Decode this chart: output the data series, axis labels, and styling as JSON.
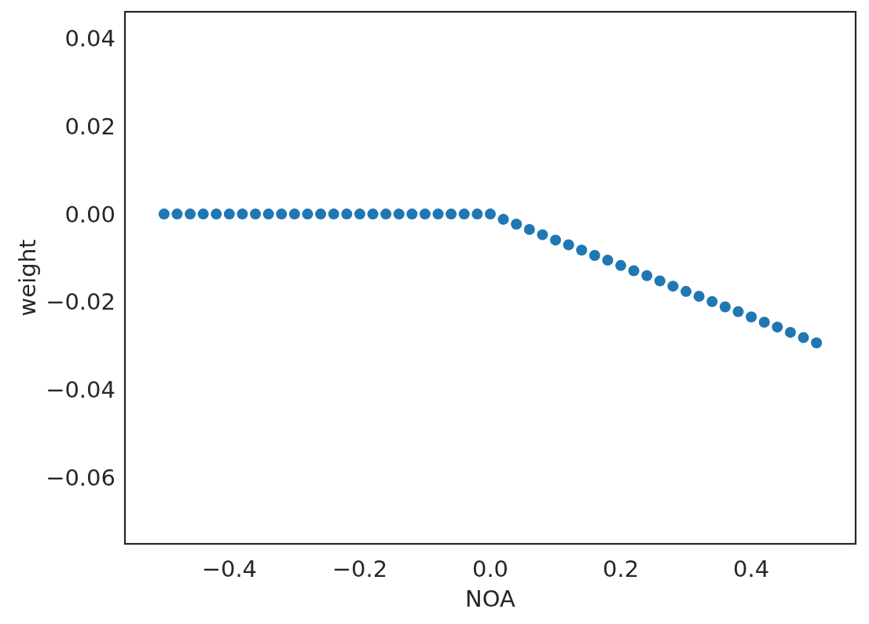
{
  "chart_data": {
    "type": "scatter",
    "xlabel": "NOA",
    "ylabel": "weight",
    "x": [
      -0.5,
      -0.48,
      -0.46,
      -0.44,
      -0.42,
      -0.4,
      -0.38,
      -0.36,
      -0.34,
      -0.32,
      -0.3,
      -0.28,
      -0.26,
      -0.24,
      -0.22,
      -0.2,
      -0.18,
      -0.16,
      -0.14,
      -0.12,
      -0.1,
      -0.08,
      -0.06,
      -0.04,
      -0.02,
      0,
      0.02,
      0.04,
      0.06,
      0.08,
      0.1,
      0.12,
      0.14,
      0.16,
      0.18,
      0.2,
      0.22,
      0.24,
      0.26,
      0.28,
      0.3,
      0.32,
      0.34,
      0.36,
      0.38,
      0.4,
      0.42,
      0.44,
      0.46,
      0.48,
      0.5
    ],
    "series": [
      {
        "color": "#1f77b4",
        "values": [
          0,
          0,
          0,
          0,
          0,
          0,
          0,
          0,
          0,
          0,
          0,
          0,
          0,
          0,
          0,
          0,
          0,
          0,
          0,
          0,
          0,
          0,
          0,
          0,
          0,
          0,
          -0.0012,
          -0.0023,
          -0.0035,
          -0.0047,
          -0.0059,
          -0.007,
          -0.0082,
          -0.0094,
          -0.0105,
          -0.0117,
          -0.0129,
          -0.014,
          -0.0152,
          -0.0164,
          -0.0176,
          -0.0187,
          -0.0199,
          -0.0211,
          -0.0222,
          -0.0234,
          -0.0246,
          -0.0257,
          -0.0269,
          -0.0281,
          -0.0293
        ]
      }
    ],
    "marker": "circle",
    "grid": false,
    "xlim": [
      -0.56,
      0.56
    ],
    "ylim": [
      -0.075,
      0.046
    ],
    "xticks": [
      {
        "value": -0.4,
        "label": "−0.4"
      },
      {
        "value": -0.2,
        "label": "−0.2"
      },
      {
        "value": 0,
        "label": "0.0"
      },
      {
        "value": 0.2,
        "label": "0.2"
      },
      {
        "value": 0.4,
        "label": "0.4"
      }
    ],
    "yticks": [
      {
        "value": -0.06,
        "label": "−0.06"
      },
      {
        "value": -0.04,
        "label": "−0.04"
      },
      {
        "value": -0.02,
        "label": "−0.02"
      },
      {
        "value": 0,
        "label": "0.00"
      },
      {
        "value": 0.02,
        "label": "0.02"
      },
      {
        "value": 0.04,
        "label": "0.04"
      }
    ]
  }
}
